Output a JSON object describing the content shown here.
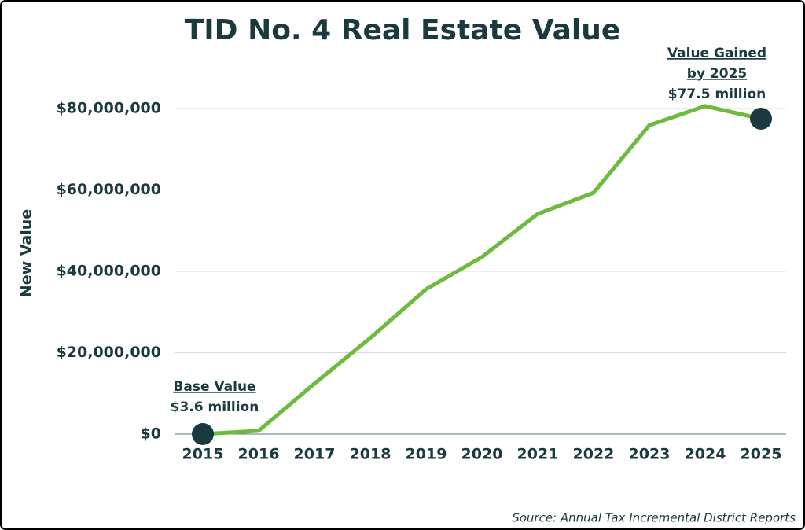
{
  "chart_data": {
    "type": "line",
    "title": "TID No. 4 Real Estate Value",
    "y_label": "New Value",
    "source": "Source: Annual Tax Incremental District Reports",
    "categories": [
      "2015",
      "2016",
      "2017",
      "2018",
      "2019",
      "2020",
      "2021",
      "2022",
      "2023",
      "2024",
      "2025"
    ],
    "series": [
      {
        "name": "New Value",
        "color": "#6cbb3c",
        "values": [
          0,
          800000,
          12400000,
          23600000,
          35600000,
          43500000,
          54100000,
          59300000,
          75900000,
          80600000,
          77500000
        ]
      }
    ],
    "ylim": [
      0,
      80000000
    ],
    "yticks": [
      {
        "value": 0,
        "label": "$0"
      },
      {
        "value": 20000000,
        "label": "$20,000,000"
      },
      {
        "value": 40000000,
        "label": "$40,000,000"
      },
      {
        "value": 60000000,
        "label": "$60,000,000"
      },
      {
        "value": 80000000,
        "label": "$80,000,000"
      }
    ],
    "grid": true,
    "annotations": [
      {
        "title": [
          "Base Value"
        ],
        "text": "$3.6 million"
      },
      {
        "title": [
          "Value Gained",
          "by 2025"
        ],
        "text": "$77.5 million"
      }
    ]
  }
}
